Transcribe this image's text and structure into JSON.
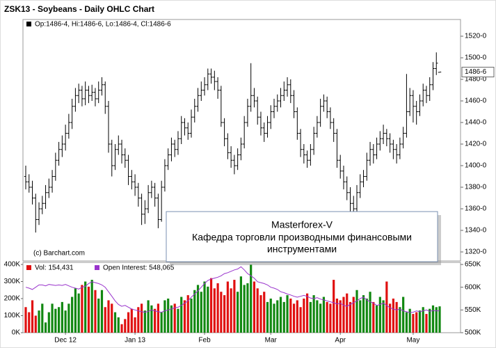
{
  "chart_data": [
    {
      "type": "ohlc",
      "title": "ZSK13 - Soybeans - Daily OHLC Chart",
      "legend": "Op:1486-4, Hi:1486-6, Lo:1486-4, Cl:1486-6",
      "source": "(c) Barchart.com",
      "annotation": [
        "Masterforex-V",
        "Кафедра торговли производными финансовыми",
        "инструментами"
      ],
      "color": "#000000",
      "xlim": [
        -0.84,
        131.3
      ],
      "ylim": [
        1311.6,
        1535.5
      ],
      "yticks": [
        {
          "value": 1520,
          "label": "1520-0"
        },
        {
          "value": 1500,
          "label": "1500-0"
        },
        {
          "value": 1480,
          "label": "1480-0"
        },
        {
          "value": 1460,
          "label": "1460-0"
        },
        {
          "value": 1440,
          "label": "1440-0"
        },
        {
          "value": 1420,
          "label": "1420-0"
        },
        {
          "value": 1400,
          "label": "1400-0"
        },
        {
          "value": 1380,
          "label": "1380-0"
        },
        {
          "value": 1360,
          "label": "1360-0"
        },
        {
          "value": 1340,
          "label": "1340-0"
        },
        {
          "value": 1320,
          "label": "1320-0"
        }
      ],
      "last": {
        "value": 1486.75,
        "label": "1486-6"
      },
      "ohlc": [
        [
          1390,
          1400,
          1378,
          1385
        ],
        [
          1385,
          1392,
          1375,
          1380
        ],
        [
          1380,
          1386,
          1364,
          1370
        ],
        [
          1370,
          1374,
          1338,
          1350
        ],
        [
          1350,
          1366,
          1345,
          1360
        ],
        [
          1360,
          1372,
          1355,
          1365
        ],
        [
          1365,
          1382,
          1360,
          1375
        ],
        [
          1375,
          1388,
          1370,
          1380
        ],
        [
          1380,
          1396,
          1375,
          1390
        ],
        [
          1390,
          1412,
          1386,
          1405
        ],
        [
          1405,
          1422,
          1400,
          1415
        ],
        [
          1415,
          1428,
          1408,
          1420
        ],
        [
          1420,
          1438,
          1414,
          1430
        ],
        [
          1430,
          1448,
          1425,
          1440
        ],
        [
          1440,
          1462,
          1434,
          1455
        ],
        [
          1455,
          1472,
          1450,
          1465
        ],
        [
          1465,
          1476,
          1458,
          1470
        ],
        [
          1470,
          1474,
          1455,
          1462
        ],
        [
          1462,
          1478,
          1456,
          1470
        ],
        [
          1470,
          1474,
          1458,
          1465
        ],
        [
          1465,
          1475,
          1460,
          1468
        ],
        [
          1468,
          1472,
          1455,
          1462
        ],
        [
          1462,
          1478,
          1458,
          1470
        ],
        [
          1470,
          1482,
          1465,
          1475
        ],
        [
          1475,
          1478,
          1448,
          1455
        ],
        [
          1455,
          1460,
          1412,
          1420
        ],
        [
          1420,
          1424,
          1390,
          1400
        ],
        [
          1400,
          1420,
          1396,
          1415
        ],
        [
          1415,
          1428,
          1410,
          1420
        ],
        [
          1420,
          1424,
          1402,
          1410
        ],
        [
          1410,
          1416,
          1398,
          1405
        ],
        [
          1405,
          1410,
          1382,
          1390
        ],
        [
          1390,
          1396,
          1378,
          1385
        ],
        [
          1385,
          1392,
          1372,
          1380
        ],
        [
          1380,
          1384,
          1362,
          1370
        ],
        [
          1370,
          1374,
          1345,
          1355
        ],
        [
          1355,
          1368,
          1346,
          1360
        ],
        [
          1360,
          1382,
          1356,
          1375
        ],
        [
          1375,
          1386,
          1370,
          1380
        ],
        [
          1380,
          1384,
          1362,
          1370
        ],
        [
          1370,
          1374,
          1342,
          1350
        ],
        [
          1350,
          1386,
          1348,
          1380
        ],
        [
          1380,
          1406,
          1376,
          1400
        ],
        [
          1400,
          1416,
          1396,
          1410
        ],
        [
          1410,
          1426,
          1404,
          1420
        ],
        [
          1420,
          1424,
          1408,
          1415
        ],
        [
          1415,
          1432,
          1410,
          1425
        ],
        [
          1425,
          1446,
          1420,
          1440
        ],
        [
          1440,
          1444,
          1428,
          1435
        ],
        [
          1435,
          1440,
          1424,
          1430
        ],
        [
          1430,
          1452,
          1426,
          1445
        ],
        [
          1445,
          1462,
          1440,
          1455
        ],
        [
          1455,
          1472,
          1450,
          1465
        ],
        [
          1465,
          1478,
          1460,
          1470
        ],
        [
          1470,
          1482,
          1465,
          1475
        ],
        [
          1475,
          1490,
          1470,
          1485
        ],
        [
          1485,
          1490,
          1476,
          1482
        ],
        [
          1482,
          1488,
          1470,
          1478
        ],
        [
          1478,
          1482,
          1462,
          1470
        ],
        [
          1470,
          1474,
          1436,
          1440
        ],
        [
          1440,
          1444,
          1418,
          1425
        ],
        [
          1425,
          1430,
          1406,
          1412
        ],
        [
          1412,
          1418,
          1398,
          1405
        ],
        [
          1405,
          1410,
          1392,
          1400
        ],
        [
          1400,
          1416,
          1396,
          1410
        ],
        [
          1410,
          1426,
          1405,
          1420
        ],
        [
          1420,
          1446,
          1416,
          1440
        ],
        [
          1440,
          1462,
          1436,
          1455
        ],
        [
          1455,
          1495,
          1450,
          1465
        ],
        [
          1465,
          1472,
          1454,
          1460
        ],
        [
          1460,
          1464,
          1438,
          1445
        ],
        [
          1445,
          1450,
          1428,
          1435
        ],
        [
          1435,
          1440,
          1422,
          1430
        ],
        [
          1430,
          1446,
          1426,
          1440
        ],
        [
          1440,
          1456,
          1434,
          1450
        ],
        [
          1450,
          1462,
          1444,
          1455
        ],
        [
          1455,
          1466,
          1450,
          1460
        ],
        [
          1460,
          1472,
          1454,
          1465
        ],
        [
          1465,
          1478,
          1460,
          1470
        ],
        [
          1470,
          1482,
          1464,
          1475
        ],
        [
          1475,
          1480,
          1458,
          1465
        ],
        [
          1465,
          1470,
          1444,
          1450
        ],
        [
          1450,
          1454,
          1424,
          1430
        ],
        [
          1430,
          1434,
          1408,
          1415
        ],
        [
          1415,
          1420,
          1402,
          1410
        ],
        [
          1410,
          1414,
          1398,
          1405
        ],
        [
          1405,
          1420,
          1400,
          1415
        ],
        [
          1415,
          1436,
          1410,
          1430
        ],
        [
          1430,
          1446,
          1426,
          1440
        ],
        [
          1440,
          1462,
          1436,
          1455
        ],
        [
          1455,
          1466,
          1450,
          1460
        ],
        [
          1460,
          1464,
          1444,
          1450
        ],
        [
          1450,
          1454,
          1434,
          1440
        ],
        [
          1440,
          1444,
          1422,
          1430
        ],
        [
          1430,
          1434,
          1398,
          1405
        ],
        [
          1405,
          1410,
          1388,
          1395
        ],
        [
          1395,
          1400,
          1378,
          1385
        ],
        [
          1385,
          1390,
          1368,
          1375
        ],
        [
          1375,
          1380,
          1356,
          1365
        ],
        [
          1365,
          1372,
          1354,
          1360
        ],
        [
          1360,
          1382,
          1356,
          1375
        ],
        [
          1375,
          1392,
          1370,
          1385
        ],
        [
          1385,
          1396,
          1380,
          1390
        ],
        [
          1390,
          1412,
          1386,
          1405
        ],
        [
          1405,
          1422,
          1400,
          1415
        ],
        [
          1415,
          1420,
          1402,
          1410
        ],
        [
          1410,
          1426,
          1406,
          1420
        ],
        [
          1420,
          1432,
          1414,
          1425
        ],
        [
          1425,
          1438,
          1420,
          1430
        ],
        [
          1430,
          1434,
          1418,
          1425
        ],
        [
          1425,
          1430,
          1412,
          1420
        ],
        [
          1420,
          1424,
          1406,
          1415
        ],
        [
          1415,
          1420,
          1402,
          1410
        ],
        [
          1410,
          1426,
          1406,
          1420
        ],
        [
          1420,
          1436,
          1416,
          1430
        ],
        [
          1430,
          1485,
          1426,
          1450
        ],
        [
          1450,
          1472,
          1446,
          1465
        ],
        [
          1465,
          1470,
          1440,
          1455
        ],
        [
          1455,
          1460,
          1438,
          1450
        ],
        [
          1450,
          1466,
          1446,
          1460
        ],
        [
          1460,
          1476,
          1455,
          1470
        ],
        [
          1470,
          1474,
          1458,
          1465
        ],
        [
          1465,
          1482,
          1460,
          1475
        ],
        [
          1475,
          1496,
          1470,
          1490
        ],
        [
          1490,
          1505,
          1484,
          1495
        ],
        [
          1486.5,
          1486.75,
          1486.5,
          1486.75
        ]
      ]
    },
    {
      "type": "bar",
      "xlim": [
        -0.84,
        131.3
      ],
      "xticks": [
        {
          "value": 12,
          "label": "Dec 12"
        },
        {
          "value": 33,
          "label": "Jan 13"
        },
        {
          "value": 54,
          "label": "Feb"
        },
        {
          "value": 74,
          "label": "Mar"
        },
        {
          "value": 95,
          "label": "Apr"
        },
        {
          "value": 117,
          "label": "May"
        }
      ],
      "ylim": [
        0,
        400000
      ],
      "yticks": [
        {
          "value": 400000,
          "label": "400K"
        },
        {
          "value": 300000,
          "label": "300K"
        },
        {
          "value": 200000,
          "label": "200K"
        },
        {
          "value": 100000,
          "label": "100K"
        },
        {
          "value": 0,
          "label": "0K"
        }
      ],
      "y2lim": [
        500000,
        650000
      ],
      "y2ticks": [
        {
          "value": 650000,
          "label": "650K"
        },
        {
          "value": 600000,
          "label": "600K"
        },
        {
          "value": 550000,
          "label": "550K"
        },
        {
          "value": 500000,
          "label": "500K"
        }
      ],
      "up_color": "#118811",
      "down_color": "#e01010",
      "series": [
        {
          "name": "Vol: 154,431",
          "color": "#e01010",
          "values": [
            150000,
            120000,
            190000,
            100000,
            130000,
            170000,
            60000,
            120000,
            170000,
            140000,
            150000,
            180000,
            130000,
            170000,
            210000,
            260000,
            230000,
            280000,
            300000,
            270000,
            310000,
            250000,
            200000,
            250000,
            150000,
            190000,
            170000,
            120000,
            90000,
            50000,
            80000,
            120000,
            140000,
            90000,
            150000,
            170000,
            130000,
            190000,
            160000,
            140000,
            170000,
            120000,
            190000,
            200000,
            160000,
            170000,
            140000,
            210000,
            190000,
            220000,
            200000,
            250000,
            280000,
            240000,
            300000,
            270000,
            320000,
            260000,
            290000,
            240000,
            220000,
            300000,
            260000,
            310000,
            240000,
            330000,
            280000,
            290000,
            400000,
            300000,
            260000,
            220000,
            240000,
            180000,
            200000,
            170000,
            190000,
            210000,
            180000,
            220000,
            200000,
            170000,
            190000,
            150000,
            200000,
            230000,
            180000,
            220000,
            190000,
            170000,
            210000,
            180000,
            170000,
            310000,
            200000,
            190000,
            210000,
            230000,
            180000,
            210000,
            250000,
            190000,
            220000,
            200000,
            240000,
            180000,
            160000,
            210000,
            190000,
            300000,
            170000,
            200000,
            180000,
            150000,
            210000,
            120000,
            140000,
            110000,
            120000,
            130000,
            150000,
            110000,
            140000,
            160000,
            150000,
            154431
          ]
        },
        {
          "name": "Open Interest: 548,065",
          "color": "#9933cc",
          "axis": "y2",
          "values": [
            600000,
            598000,
            595000,
            600000,
            605000,
            605000,
            603000,
            606000,
            605000,
            604000,
            605000,
            604000,
            606000,
            603000,
            600000,
            598000,
            596000,
            600000,
            602000,
            608000,
            612000,
            610000,
            608000,
            605000,
            600000,
            590000,
            580000,
            570000,
            562000,
            558000,
            560000,
            556000,
            552000,
            550000,
            548000,
            546000,
            545000,
            547000,
            550000,
            548000,
            546000,
            545000,
            548000,
            550000,
            552000,
            555000,
            556000,
            560000,
            565000,
            570000,
            578000,
            585000,
            592000,
            600000,
            608000,
            615000,
            618000,
            620000,
            622000,
            625000,
            630000,
            632000,
            635000,
            638000,
            640000,
            645000,
            638000,
            630000,
            625000,
            620000,
            612000,
            610000,
            608000,
            605000,
            600000,
            598000,
            595000,
            590000,
            588000,
            585000,
            583000,
            580000,
            578000,
            580000,
            582000,
            580000,
            576000,
            575000,
            577000,
            574000,
            572000,
            570000,
            568000,
            566000,
            563000,
            565000,
            560000,
            558000,
            562000,
            566000,
            570000,
            575000,
            578000,
            572000,
            568000,
            565000,
            560000,
            562000,
            565000,
            560000,
            555000,
            552000,
            550000,
            552000,
            548000,
            546000,
            544000,
            545000,
            548000,
            546000,
            548000,
            550000,
            547000,
            549000,
            548000,
            548065
          ]
        }
      ]
    }
  ]
}
